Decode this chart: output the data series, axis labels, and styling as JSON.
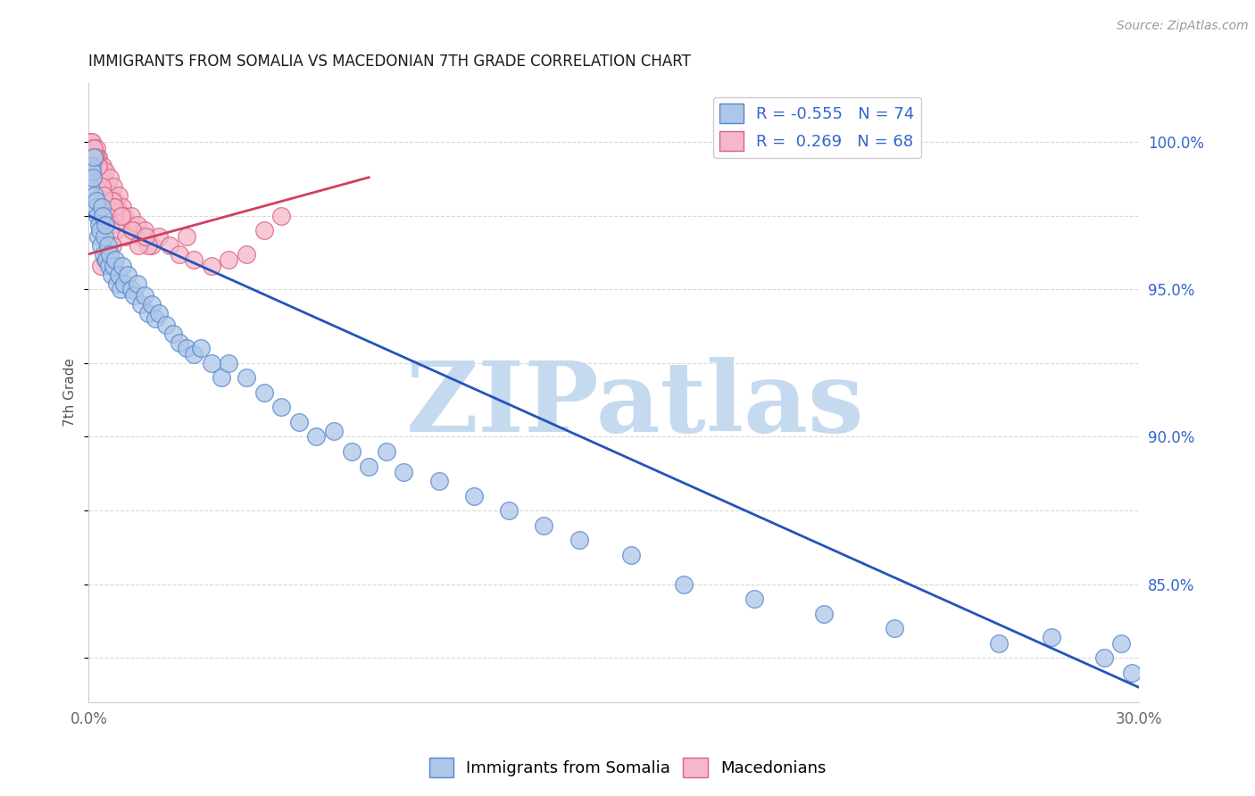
{
  "title": "IMMIGRANTS FROM SOMALIA VS MACEDONIAN 7TH GRADE CORRELATION CHART",
  "source": "Source: ZipAtlas.com",
  "ylabel": "7th Grade",
  "xlim": [
    0.0,
    30.0
  ],
  "ylim": [
    81.0,
    102.0
  ],
  "y_ticks_right": [
    85.0,
    90.0,
    95.0,
    100.0
  ],
  "y_tick_labels_right": [
    "85.0%",
    "90.0%",
    "95.0%",
    "100.0%"
  ],
  "x_ticks": [
    0.0,
    5.0,
    10.0,
    15.0,
    20.0,
    25.0,
    30.0
  ],
  "x_tick_labels": [
    "0.0%",
    "",
    "",
    "",
    "",
    "",
    "30.0%"
  ],
  "somalia_color": "#aec6e8",
  "somalia_edge_color": "#5588cc",
  "macedonian_color": "#f5b8ca",
  "macedonian_edge_color": "#d96080",
  "somalia_line_color": "#2255bb",
  "macedonian_line_color": "#d04060",
  "R_somalia": -0.555,
  "N_somalia": 74,
  "R_macedonian": 0.269,
  "N_macedonian": 68,
  "watermark": "ZIPatlas",
  "watermark_color": "#c5daee",
  "legend_somalia_label": "Immigrants from Somalia",
  "legend_macedonian_label": "Macedonians",
  "background_color": "#ffffff",
  "grid_color": "#d8d8d8",
  "title_color": "#1a1a1a",
  "axis_label_color": "#555555",
  "tick_label_color_right": "#3366cc",
  "tick_label_color_bottom": "#666666",
  "blue_line_x": [
    0.0,
    30.0
  ],
  "blue_line_y": [
    97.5,
    81.5
  ],
  "pink_line_x": [
    0.0,
    8.0
  ],
  "pink_line_y": [
    96.2,
    98.8
  ],
  "somalia_scatter_x": [
    0.05,
    0.08,
    0.1,
    0.12,
    0.15,
    0.18,
    0.2,
    0.22,
    0.25,
    0.28,
    0.3,
    0.32,
    0.35,
    0.38,
    0.4,
    0.42,
    0.45,
    0.48,
    0.5,
    0.55,
    0.58,
    0.6,
    0.65,
    0.7,
    0.75,
    0.8,
    0.85,
    0.9,
    0.95,
    1.0,
    1.1,
    1.2,
    1.3,
    1.4,
    1.5,
    1.6,
    1.7,
    1.8,
    1.9,
    2.0,
    2.2,
    2.4,
    2.6,
    2.8,
    3.0,
    3.2,
    3.5,
    3.8,
    4.0,
    4.5,
    5.0,
    5.5,
    6.0,
    6.5,
    7.0,
    7.5,
    8.0,
    8.5,
    9.0,
    10.0,
    11.0,
    12.0,
    13.0,
    14.0,
    15.5,
    17.0,
    19.0,
    21.0,
    23.0,
    26.0,
    27.5,
    29.0,
    29.5,
    29.8
  ],
  "somalia_scatter_y": [
    98.5,
    99.2,
    99.0,
    98.8,
    99.5,
    98.2,
    97.8,
    98.0,
    97.5,
    96.8,
    97.2,
    97.0,
    96.5,
    97.8,
    97.5,
    96.2,
    96.8,
    97.2,
    96.0,
    96.5,
    95.8,
    96.2,
    95.5,
    95.8,
    96.0,
    95.2,
    95.5,
    95.0,
    95.8,
    95.2,
    95.5,
    95.0,
    94.8,
    95.2,
    94.5,
    94.8,
    94.2,
    94.5,
    94.0,
    94.2,
    93.8,
    93.5,
    93.2,
    93.0,
    92.8,
    93.0,
    92.5,
    92.0,
    92.5,
    92.0,
    91.5,
    91.0,
    90.5,
    90.0,
    90.2,
    89.5,
    89.0,
    89.5,
    88.8,
    88.5,
    88.0,
    87.5,
    87.0,
    86.5,
    86.0,
    85.0,
    84.5,
    84.0,
    83.5,
    83.0,
    83.2,
    82.5,
    83.0,
    82.0
  ],
  "macedonian_scatter_x": [
    0.05,
    0.08,
    0.1,
    0.12,
    0.15,
    0.18,
    0.2,
    0.22,
    0.25,
    0.28,
    0.3,
    0.32,
    0.35,
    0.38,
    0.4,
    0.42,
    0.45,
    0.48,
    0.5,
    0.55,
    0.58,
    0.6,
    0.65,
    0.7,
    0.75,
    0.8,
    0.85,
    0.9,
    0.95,
    1.0,
    1.1,
    1.2,
    1.3,
    1.4,
    1.5,
    1.6,
    1.8,
    2.0,
    2.3,
    2.6,
    3.0,
    3.5,
    4.0,
    4.5,
    5.0,
    5.5,
    2.8,
    1.7,
    0.68,
    0.72,
    0.38,
    0.42,
    0.22,
    0.28,
    0.15,
    0.18,
    0.52,
    0.62,
    0.78,
    0.92,
    1.05,
    1.25,
    1.42,
    1.62,
    0.35,
    0.48,
    0.58,
    0.68
  ],
  "macedonian_scatter_y": [
    100.0,
    99.8,
    100.0,
    99.5,
    99.8,
    99.2,
    99.5,
    99.8,
    99.0,
    99.5,
    99.2,
    98.8,
    99.0,
    98.5,
    99.2,
    98.8,
    98.5,
    99.0,
    98.2,
    98.5,
    98.0,
    98.8,
    98.2,
    98.5,
    98.0,
    97.8,
    98.2,
    97.5,
    97.8,
    97.5,
    97.2,
    97.5,
    97.0,
    97.2,
    96.8,
    97.0,
    96.5,
    96.8,
    96.5,
    96.2,
    96.0,
    95.8,
    96.0,
    96.2,
    97.0,
    97.5,
    96.8,
    96.5,
    98.0,
    97.8,
    98.5,
    98.2,
    99.5,
    99.2,
    99.8,
    99.5,
    97.5,
    97.2,
    97.0,
    97.5,
    96.8,
    97.0,
    96.5,
    96.8,
    95.8,
    96.0,
    96.2,
    96.5
  ]
}
